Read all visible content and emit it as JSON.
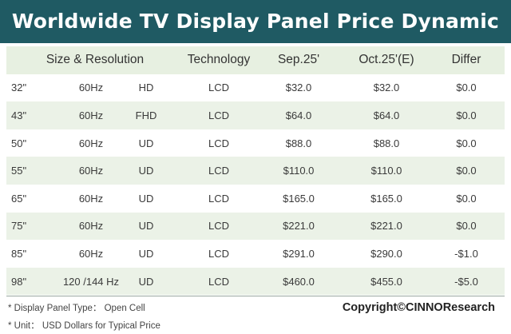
{
  "title": "Worldwide TV Display Panel Price Dynamic",
  "colors": {
    "title_bar": "#1f5a63",
    "row_shade": "#ebf2e7",
    "title_text": "#ffffff"
  },
  "table": {
    "headers": {
      "size_resolution": "Size & Resolution",
      "technology": "Technology",
      "sep": "Sep.25'",
      "oct": "Oct.25'(E)",
      "differ": "Differ"
    },
    "rows": [
      {
        "size": "32\"",
        "hz": "60Hz",
        "res": "HD",
        "tech": "LCD",
        "sep": "$32.0",
        "oct": "$32.0",
        "differ": "$0.0"
      },
      {
        "size": "43\"",
        "hz": "60Hz",
        "res": "FHD",
        "tech": "LCD",
        "sep": "$64.0",
        "oct": "$64.0",
        "differ": "$0.0"
      },
      {
        "size": "50\"",
        "hz": "60Hz",
        "res": "UD",
        "tech": "LCD",
        "sep": "$88.0",
        "oct": "$88.0",
        "differ": "$0.0"
      },
      {
        "size": "55\"",
        "hz": "60Hz",
        "res": "UD",
        "tech": "LCD",
        "sep": "$110.0",
        "oct": "$110.0",
        "differ": "$0.0"
      },
      {
        "size": "65\"",
        "hz": "60Hz",
        "res": "UD",
        "tech": "LCD",
        "sep": "$165.0",
        "oct": "$165.0",
        "differ": "$0.0"
      },
      {
        "size": "75\"",
        "hz": "60Hz",
        "res": "UD",
        "tech": "LCD",
        "sep": "$221.0",
        "oct": "$221.0",
        "differ": "$0.0"
      },
      {
        "size": "85\"",
        "hz": "60Hz",
        "res": "UD",
        "tech": "LCD",
        "sep": "$291.0",
        "oct": "$290.0",
        "differ": "-$1.0"
      },
      {
        "size": "98\"",
        "hz": "120 /144 Hz",
        "res": "UD",
        "tech": "LCD",
        "sep": "$460.0",
        "oct": "$455.0",
        "differ": "-$5.0"
      }
    ]
  },
  "footer": {
    "note1": "* Display Panel Type： Open Cell",
    "note2": "* Unit： USD Dollars for Typical Price",
    "copyright": "Copyright©CINNOResearch"
  }
}
